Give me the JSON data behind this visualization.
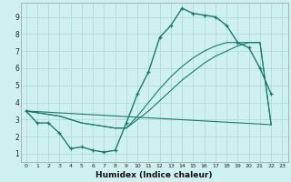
{
  "xlabel": "Humidex (Indice chaleur)",
  "bg_color": "#cff0f0",
  "grid_color": "#aad8d8",
  "line_color": "#1a7a6e",
  "xlim": [
    -0.5,
    23.5
  ],
  "ylim": [
    0.5,
    9.8
  ],
  "xticks": [
    0,
    1,
    2,
    3,
    4,
    5,
    6,
    7,
    8,
    9,
    10,
    11,
    12,
    13,
    14,
    15,
    16,
    17,
    18,
    19,
    20,
    21,
    22,
    23
  ],
  "yticks": [
    1,
    2,
    3,
    4,
    5,
    6,
    7,
    8,
    9
  ],
  "line1_x": [
    0,
    1,
    2,
    3,
    4,
    5,
    6,
    7,
    8,
    9,
    10,
    11,
    12,
    13,
    14,
    15,
    16,
    17,
    18,
    19,
    20,
    21,
    22
  ],
  "line1_y": [
    3.5,
    2.8,
    2.8,
    2.2,
    1.3,
    1.4,
    1.2,
    1.1,
    1.2,
    2.8,
    4.5,
    5.8,
    7.8,
    8.5,
    9.5,
    9.2,
    9.1,
    9.0,
    8.5,
    7.5,
    7.2,
    6.0,
    4.5
  ],
  "line2_x": [
    0,
    3,
    4,
    5,
    6,
    7,
    8,
    9,
    10,
    11,
    12,
    13,
    14,
    15,
    16,
    17,
    18,
    19,
    20,
    21,
    22
  ],
  "line2_y": [
    3.5,
    3.2,
    3.0,
    2.8,
    2.7,
    2.6,
    2.5,
    2.5,
    3.0,
    3.5,
    4.1,
    4.7,
    5.3,
    5.8,
    6.3,
    6.7,
    7.0,
    7.3,
    7.5,
    7.5,
    2.7
  ],
  "line3_x": [
    0,
    3,
    22
  ],
  "line3_y": [
    3.5,
    3.0,
    2.7
  ],
  "line4_x": [
    0,
    3,
    4,
    5,
    6,
    7,
    8,
    9,
    10,
    11,
    12,
    13,
    14,
    15,
    16,
    17,
    18,
    19,
    20,
    21,
    22
  ],
  "line4_y": [
    3.5,
    3.2,
    3.0,
    2.8,
    2.7,
    2.6,
    2.5,
    2.5,
    3.2,
    4.0,
    4.8,
    5.5,
    6.1,
    6.6,
    7.0,
    7.3,
    7.5,
    7.5,
    7.5,
    7.5,
    2.7
  ]
}
